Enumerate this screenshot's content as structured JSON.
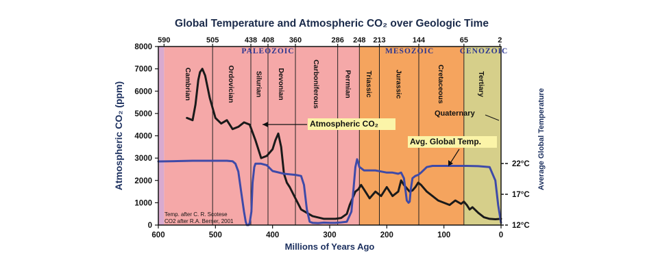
{
  "chart_data": {
    "type": "line",
    "title": "Global Temperature and Atmospheric CO₂ over Geologic Time",
    "xlabel": "Millions of Years Ago",
    "ylabel": "Atmospheric CO₂ (ppm)",
    "y2label": "Average Global Temperature",
    "xlim": [
      600,
      0
    ],
    "ylim": [
      0,
      8000
    ],
    "x_ticks": [
      600,
      500,
      400,
      300,
      200,
      100,
      0
    ],
    "y_ticks": [
      0,
      1000,
      2000,
      3000,
      4000,
      5000,
      6000,
      7000,
      8000
    ],
    "y2_ticks": [
      {
        "label": "12°C",
        "ppm": 0
      },
      {
        "label": "17°C",
        "ppm": 1380
      },
      {
        "label": "22°C",
        "ppm": 2760
      }
    ],
    "top_ticks": [
      590,
      505,
      438,
      408,
      360,
      286,
      248,
      213,
      144,
      65,
      2
    ],
    "eras": [
      {
        "name": "PALEOZOIC",
        "start": 590,
        "end": 248,
        "color": "#f5a8a8"
      },
      {
        "name": "MESOZOIC",
        "start": 248,
        "end": 65,
        "color": "#f5a45e"
      },
      {
        "name": "CENOZOIC",
        "start": 65,
        "end": 0,
        "color": "#d6cf8a"
      },
      {
        "name": "",
        "start": 600,
        "end": 590,
        "color": "#d8aad0"
      }
    ],
    "periods": [
      {
        "name": "Cambrian",
        "start": 590,
        "end": 505
      },
      {
        "name": "Ordovician",
        "start": 505,
        "end": 438
      },
      {
        "name": "Silurian",
        "start": 438,
        "end": 408
      },
      {
        "name": "Devonian",
        "start": 408,
        "end": 360
      },
      {
        "name": "Carboniferous",
        "start": 360,
        "end": 286
      },
      {
        "name": "Permian",
        "start": 286,
        "end": 248
      },
      {
        "name": "Triassic",
        "start": 248,
        "end": 213
      },
      {
        "name": "Jurassic",
        "start": 213,
        "end": 144
      },
      {
        "name": "Cretaceous",
        "start": 144,
        "end": 65
      },
      {
        "name": "Tertiary",
        "start": 65,
        "end": 2
      }
    ],
    "quaternary_label": "Quaternary",
    "series": [
      {
        "name": "Atmospheric CO₂",
        "color": "#1a1a1a",
        "x": [
          550,
          540,
          535,
          530,
          527,
          523,
          518,
          510,
          500,
          490,
          480,
          470,
          460,
          450,
          440,
          430,
          420,
          410,
          400,
          395,
          390,
          385,
          380,
          375,
          370,
          360,
          350,
          330,
          310,
          290,
          280,
          270,
          265,
          260,
          255,
          250,
          245,
          240,
          230,
          220,
          215,
          210,
          200,
          190,
          180,
          175,
          170,
          160,
          155,
          150,
          145,
          140,
          130,
          120,
          110,
          100,
          90,
          80,
          70,
          65,
          60,
          55,
          50,
          40,
          30,
          20,
          10,
          0
        ],
        "y": [
          4800,
          4700,
          5400,
          6500,
          6850,
          7000,
          6700,
          5700,
          4800,
          4550,
          4700,
          4300,
          4400,
          4600,
          4500,
          3800,
          3000,
          3100,
          3400,
          3800,
          4100,
          3500,
          2300,
          1900,
          1700,
          1200,
          700,
          400,
          280,
          280,
          320,
          500,
          900,
          1200,
          1500,
          1600,
          1800,
          1600,
          1200,
          1500,
          1400,
          1300,
          1700,
          1300,
          1500,
          2000,
          1800,
          1500,
          1550,
          1700,
          1900,
          1800,
          1500,
          1300,
          1100,
          1000,
          900,
          1100,
          950,
          1050,
          900,
          700,
          800,
          550,
          350,
          280,
          260,
          280
        ]
      },
      {
        "name": "Avg. Global Temp.",
        "color": "#3e4aa8",
        "x": [
          600,
          580,
          560,
          540,
          520,
          500,
          480,
          470,
          465,
          460,
          455,
          450,
          447,
          445,
          442,
          440,
          437,
          435,
          432,
          430,
          420,
          410,
          400,
          380,
          360,
          350,
          345,
          340,
          335,
          330,
          320,
          310,
          300,
          290,
          280,
          270,
          262,
          258,
          255,
          252,
          250,
          248,
          245,
          240,
          230,
          220,
          210,
          200,
          190,
          180,
          175,
          170,
          168,
          165,
          162,
          160,
          158,
          155,
          150,
          145,
          140,
          130,
          120,
          100,
          80,
          60,
          40,
          20,
          10,
          5,
          0
        ],
        "y": [
          2850,
          2860,
          2870,
          2880,
          2880,
          2880,
          2880,
          2860,
          2750,
          2400,
          1500,
          600,
          150,
          0,
          0,
          100,
          600,
          1900,
          2600,
          2750,
          2750,
          2680,
          2420,
          2300,
          2250,
          2200,
          1800,
          700,
          150,
          100,
          90,
          110,
          100,
          100,
          120,
          150,
          600,
          1700,
          2600,
          2950,
          2800,
          2600,
          2550,
          2450,
          2450,
          2450,
          2400,
          2350,
          2350,
          2300,
          2350,
          2100,
          1700,
          1100,
          1000,
          1050,
          1600,
          2100,
          2200,
          2250,
          2350,
          2600,
          2650,
          2650,
          2650,
          2650,
          2640,
          2600,
          2000,
          900,
          100
        ]
      }
    ],
    "labels": {
      "co2": "Atmospheric CO₂",
      "temp": "Avg. Global Temp."
    },
    "credits": [
      "Temp. after C. R. Scotese",
      "CO2 after R.A. Berner, 2001"
    ]
  }
}
